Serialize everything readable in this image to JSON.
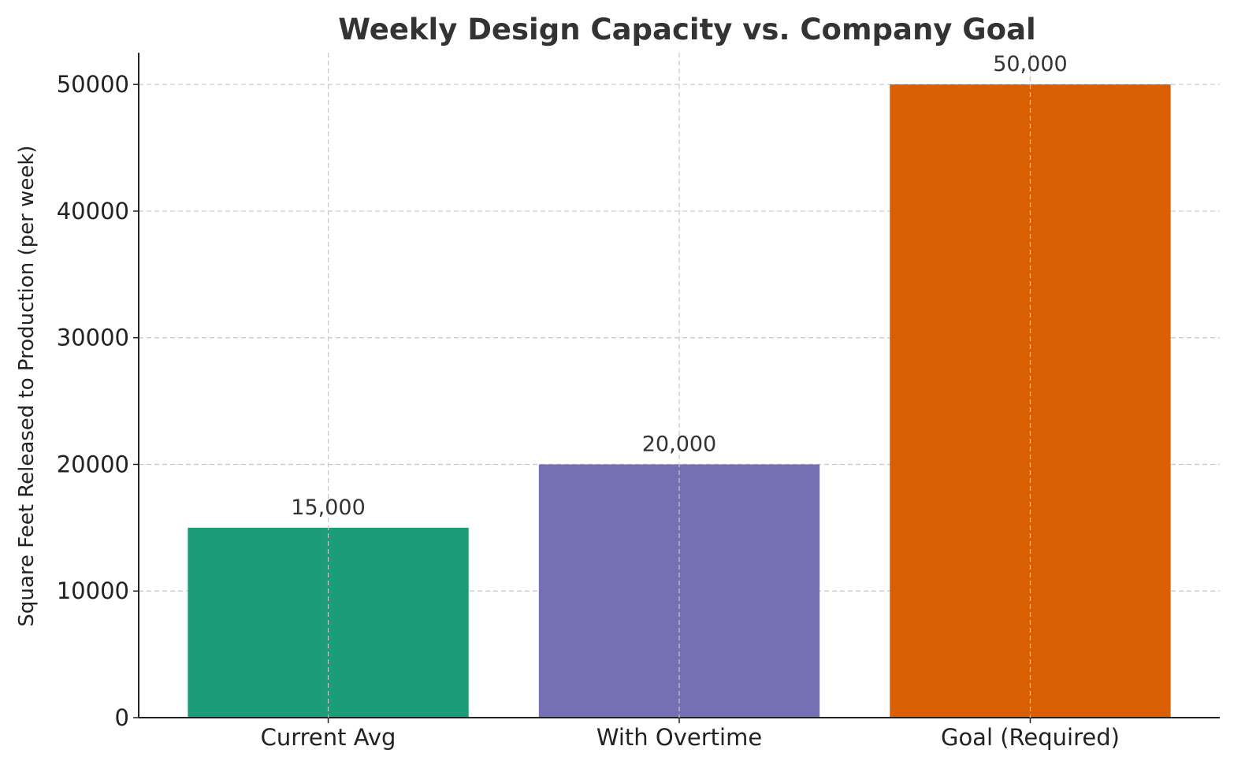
{
  "chart_data": {
    "type": "bar",
    "title": "Weekly Design Capacity vs. Company Goal",
    "xlabel": "",
    "ylabel": "Square Feet Released to Production (per week)",
    "categories": [
      "Current Avg",
      "With Overtime",
      "Goal (Required)"
    ],
    "values": [
      15000,
      20000,
      50000
    ],
    "data_labels": [
      "15,000",
      "20,000",
      "50,000"
    ],
    "colors": [
      "#1b9e77",
      "#7570b3",
      "#d95f02"
    ],
    "ylim": [
      0,
      52500
    ],
    "yticks": [
      0,
      10000,
      20000,
      30000,
      40000,
      50000
    ],
    "ytick_labels": [
      "0",
      "10000",
      "20000",
      "30000",
      "40000",
      "50000"
    ],
    "grid": true,
    "legend": "none"
  }
}
